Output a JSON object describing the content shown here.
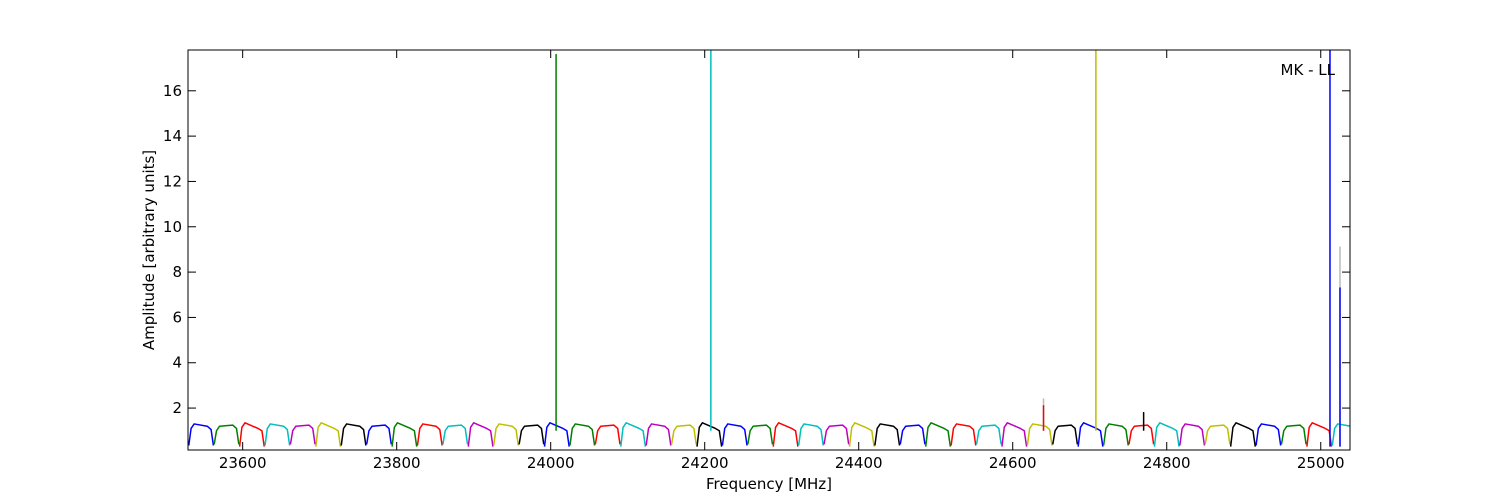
{
  "chart_data": {
    "type": "line",
    "annotation": "MK - LL",
    "xlabel": "Frequency [MHz]",
    "ylabel": "Amplitude [arbitrary units]",
    "xlim": [
      23529,
      25038
    ],
    "ylim": [
      0.15,
      17.8
    ],
    "xticks": [
      23600,
      23800,
      24000,
      24200,
      24400,
      24600,
      24800,
      25000
    ],
    "yticks": [
      2,
      4,
      6,
      8,
      10,
      12,
      14,
      16
    ],
    "series": [
      {
        "color": "#0000ff",
        "x": [
          23530,
          23533,
          23537,
          23554,
          23559,
          23562
        ],
        "values": [
          0.35,
          1.1,
          1.3,
          1.2,
          1.05,
          0.35
        ]
      },
      {
        "color": "#008000",
        "x": [
          23563,
          23566,
          23570,
          23587,
          23592,
          23595
        ],
        "values": [
          0.4,
          1.0,
          1.2,
          1.25,
          1.1,
          0.4
        ]
      },
      {
        "color": "#ff0000",
        "x": [
          23596,
          23599,
          23603,
          23620,
          23625,
          23628
        ],
        "values": [
          0.3,
          1.15,
          1.35,
          1.1,
          1.0,
          0.3
        ]
      },
      {
        "color": "#00bfbf",
        "x": [
          23629,
          23632,
          23636,
          23653,
          23658,
          23661
        ],
        "values": [
          0.35,
          1.1,
          1.3,
          1.2,
          1.05,
          0.35
        ]
      },
      {
        "color": "#bf00bf",
        "x": [
          23662,
          23665,
          23669,
          23686,
          23691,
          23694
        ],
        "values": [
          0.4,
          1.0,
          1.2,
          1.25,
          1.1,
          0.4
        ]
      },
      {
        "color": "#bfbf00",
        "x": [
          23695,
          23698,
          23702,
          23719,
          23724,
          23727
        ],
        "values": [
          0.3,
          1.15,
          1.35,
          1.1,
          1.0,
          0.3
        ]
      },
      {
        "color": "#000000",
        "x": [
          23728,
          23731,
          23735,
          23752,
          23757,
          23760
        ],
        "values": [
          0.35,
          1.1,
          1.3,
          1.2,
          1.05,
          0.35
        ]
      },
      {
        "color": "#0000ff",
        "x": [
          23761,
          23764,
          23768,
          23785,
          23790,
          23793
        ],
        "values": [
          0.4,
          1.0,
          1.2,
          1.25,
          1.1,
          0.4
        ]
      },
      {
        "color": "#008000",
        "x": [
          23794,
          23797,
          23801,
          23818,
          23823,
          23826
        ],
        "values": [
          0.3,
          1.15,
          1.35,
          1.1,
          1.0,
          0.3
        ]
      },
      {
        "color": "#ff0000",
        "x": [
          23827,
          23830,
          23834,
          23851,
          23856,
          23859
        ],
        "values": [
          0.35,
          1.1,
          1.3,
          1.2,
          1.05,
          0.35
        ]
      },
      {
        "color": "#00bfbf",
        "x": [
          23860,
          23863,
          23867,
          23884,
          23889,
          23892
        ],
        "values": [
          0.4,
          1.0,
          1.2,
          1.25,
          1.1,
          0.4
        ]
      },
      {
        "color": "#bf00bf",
        "x": [
          23893,
          23896,
          23900,
          23917,
          23922,
          23925
        ],
        "values": [
          0.3,
          1.15,
          1.35,
          1.1,
          1.0,
          0.3
        ]
      },
      {
        "color": "#bfbf00",
        "x": [
          23926,
          23929,
          23933,
          23950,
          23955,
          23958
        ],
        "values": [
          0.35,
          1.1,
          1.3,
          1.2,
          1.05,
          0.35
        ]
      },
      {
        "color": "#000000",
        "x": [
          23959,
          23962,
          23966,
          23983,
          23988,
          23991
        ],
        "values": [
          0.4,
          1.0,
          1.2,
          1.25,
          1.1,
          0.4
        ]
      },
      {
        "color": "#0000ff",
        "x": [
          23992,
          23995,
          23999,
          24016,
          24021,
          24024
        ],
        "values": [
          0.3,
          1.15,
          1.35,
          1.1,
          1.0,
          0.3
        ]
      },
      {
        "color": "#008000",
        "x": [
          24025,
          24028,
          24032,
          24049,
          24054,
          24057
        ],
        "values": [
          0.35,
          1.1,
          1.3,
          1.2,
          1.05,
          0.35
        ]
      },
      {
        "color": "#ff0000",
        "x": [
          24058,
          24061,
          24065,
          24082,
          24087,
          24090
        ],
        "values": [
          0.4,
          1.0,
          1.2,
          1.25,
          1.1,
          0.4
        ]
      },
      {
        "color": "#00bfbf",
        "x": [
          24091,
          24094,
          24098,
          24115,
          24120,
          24123
        ],
        "values": [
          0.3,
          1.15,
          1.35,
          1.1,
          1.0,
          0.3
        ]
      },
      {
        "color": "#bf00bf",
        "x": [
          24124,
          24127,
          24131,
          24148,
          24153,
          24156
        ],
        "values": [
          0.35,
          1.1,
          1.3,
          1.2,
          1.05,
          0.35
        ]
      },
      {
        "color": "#bfbf00",
        "x": [
          24157,
          24160,
          24164,
          24181,
          24186,
          24189
        ],
        "values": [
          0.4,
          1.0,
          1.2,
          1.25,
          1.1,
          0.4
        ]
      },
      {
        "color": "#000000",
        "x": [
          24190,
          24193,
          24197,
          24214,
          24219,
          24222
        ],
        "values": [
          0.3,
          1.15,
          1.35,
          1.1,
          1.0,
          0.3
        ]
      },
      {
        "color": "#0000ff",
        "x": [
          24223,
          24226,
          24230,
          24247,
          24252,
          24255
        ],
        "values": [
          0.35,
          1.1,
          1.3,
          1.2,
          1.05,
          0.35
        ]
      },
      {
        "color": "#008000",
        "x": [
          24256,
          24259,
          24263,
          24280,
          24285,
          24288
        ],
        "values": [
          0.4,
          1.0,
          1.2,
          1.25,
          1.1,
          0.4
        ]
      },
      {
        "color": "#ff0000",
        "x": [
          24289,
          24292,
          24296,
          24313,
          24318,
          24321
        ],
        "values": [
          0.3,
          1.15,
          1.35,
          1.1,
          1.0,
          0.3
        ]
      },
      {
        "color": "#00bfbf",
        "x": [
          24322,
          24325,
          24329,
          24346,
          24351,
          24354
        ],
        "values": [
          0.35,
          1.1,
          1.3,
          1.2,
          1.05,
          0.35
        ]
      },
      {
        "color": "#bf00bf",
        "x": [
          24355,
          24358,
          24362,
          24379,
          24384,
          24387
        ],
        "values": [
          0.4,
          1.0,
          1.2,
          1.25,
          1.1,
          0.4
        ]
      },
      {
        "color": "#bfbf00",
        "x": [
          24388,
          24391,
          24395,
          24412,
          24417,
          24420
        ],
        "values": [
          0.3,
          1.15,
          1.35,
          1.1,
          1.0,
          0.3
        ]
      },
      {
        "color": "#000000",
        "x": [
          24421,
          24424,
          24428,
          24445,
          24450,
          24453
        ],
        "values": [
          0.35,
          1.1,
          1.3,
          1.2,
          1.05,
          0.35
        ]
      },
      {
        "color": "#0000ff",
        "x": [
          24454,
          24457,
          24461,
          24478,
          24483,
          24486
        ],
        "values": [
          0.4,
          1.0,
          1.2,
          1.25,
          1.1,
          0.4
        ]
      },
      {
        "color": "#008000",
        "x": [
          24487,
          24490,
          24494,
          24511,
          24516,
          24519
        ],
        "values": [
          0.3,
          1.15,
          1.35,
          1.1,
          1.0,
          0.3
        ]
      },
      {
        "color": "#ff0000",
        "x": [
          24520,
          24523,
          24527,
          24544,
          24549,
          24552
        ],
        "values": [
          0.35,
          1.1,
          1.3,
          1.2,
          1.05,
          0.35
        ]
      },
      {
        "color": "#00bfbf",
        "x": [
          24553,
          24556,
          24560,
          24577,
          24582,
          24585
        ],
        "values": [
          0.4,
          1.0,
          1.2,
          1.25,
          1.1,
          0.4
        ]
      },
      {
        "color": "#bf00bf",
        "x": [
          24586,
          24589,
          24593,
          24610,
          24615,
          24618
        ],
        "values": [
          0.3,
          1.15,
          1.35,
          1.1,
          1.0,
          0.3
        ]
      },
      {
        "color": "#bfbf00",
        "x": [
          24619,
          24622,
          24626,
          24643,
          24648,
          24651
        ],
        "values": [
          0.35,
          1.1,
          1.3,
          1.2,
          1.05,
          0.35
        ]
      },
      {
        "color": "#000000",
        "x": [
          24652,
          24655,
          24659,
          24676,
          24681,
          24684
        ],
        "values": [
          0.4,
          1.0,
          1.2,
          1.25,
          1.1,
          0.4
        ]
      },
      {
        "color": "#0000ff",
        "x": [
          24685,
          24688,
          24692,
          24709,
          24714,
          24717
        ],
        "values": [
          0.3,
          1.15,
          1.35,
          1.1,
          1.0,
          0.3
        ]
      },
      {
        "color": "#008000",
        "x": [
          24718,
          24721,
          24725,
          24742,
          24747,
          24750
        ],
        "values": [
          0.35,
          1.1,
          1.3,
          1.2,
          1.05,
          0.35
        ]
      },
      {
        "color": "#ff0000",
        "x": [
          24751,
          24754,
          24758,
          24775,
          24780,
          24783
        ],
        "values": [
          0.4,
          1.0,
          1.2,
          1.25,
          1.1,
          0.4
        ]
      },
      {
        "color": "#00bfbf",
        "x": [
          24784,
          24787,
          24791,
          24808,
          24813,
          24816
        ],
        "values": [
          0.3,
          1.15,
          1.35,
          1.1,
          1.0,
          0.3
        ]
      },
      {
        "color": "#bf00bf",
        "x": [
          24817,
          24820,
          24824,
          24841,
          24846,
          24849
        ],
        "values": [
          0.35,
          1.1,
          1.3,
          1.2,
          1.05,
          0.35
        ]
      },
      {
        "color": "#bfbf00",
        "x": [
          24850,
          24853,
          24857,
          24874,
          24879,
          24882
        ],
        "values": [
          0.4,
          1.0,
          1.2,
          1.25,
          1.1,
          0.4
        ]
      },
      {
        "color": "#000000",
        "x": [
          24883,
          24886,
          24890,
          24907,
          24912,
          24915
        ],
        "values": [
          0.3,
          1.15,
          1.35,
          1.1,
          1.0,
          0.3
        ]
      },
      {
        "color": "#0000ff",
        "x": [
          24916,
          24919,
          24923,
          24940,
          24945,
          24948
        ],
        "values": [
          0.35,
          1.1,
          1.3,
          1.2,
          1.05,
          0.35
        ]
      },
      {
        "color": "#008000",
        "x": [
          24949,
          24952,
          24956,
          24973,
          24978,
          24981
        ],
        "values": [
          0.4,
          1.0,
          1.2,
          1.25,
          1.1,
          0.4
        ]
      },
      {
        "color": "#ff0000",
        "x": [
          24982,
          24985,
          24989,
          25006,
          25011,
          25014
        ],
        "values": [
          0.3,
          1.15,
          1.35,
          1.1,
          1.0,
          0.3
        ]
      },
      {
        "color": "#00bfbf",
        "x": [
          25015,
          25018,
          25022,
          25039,
          25044,
          25047
        ],
        "values": [
          0.35,
          1.1,
          1.3,
          1.2,
          1.05,
          0.35
        ]
      },
      {
        "color": "#008000",
        "x": [
          24007,
          24007,
          24007
        ],
        "values": [
          1.0,
          17.6,
          1.0
        ]
      },
      {
        "color": "#00bfbf",
        "x": [
          24208,
          24208,
          24208
        ],
        "values": [
          1.0,
          17.8,
          1.0
        ]
      },
      {
        "color": "#bbbbbb",
        "x": [
          24640,
          24640,
          24640
        ],
        "values": [
          1.0,
          2.4,
          1.0
        ]
      },
      {
        "color": "#ff0000",
        "x": [
          24640,
          24640,
          24640
        ],
        "values": [
          1.0,
          2.1,
          1.0
        ]
      },
      {
        "color": "#bfbf00",
        "x": [
          24708,
          24708,
          24708
        ],
        "values": [
          1.0,
          17.8,
          1.0
        ]
      },
      {
        "color": "#000000",
        "x": [
          24770,
          24770,
          24770
        ],
        "values": [
          1.0,
          1.8,
          1.0
        ]
      },
      {
        "color": "#0000ff",
        "x": [
          25012,
          25012,
          25012
        ],
        "values": [
          0.3,
          17.8,
          0.3
        ]
      },
      {
        "color": "#bbbbbb",
        "x": [
          25025,
          25025,
          25025
        ],
        "values": [
          0.3,
          9.1,
          0.3
        ]
      },
      {
        "color": "#0000ff",
        "x": [
          25025,
          25025,
          25025
        ],
        "values": [
          0.3,
          7.3,
          0.3
        ]
      }
    ]
  }
}
